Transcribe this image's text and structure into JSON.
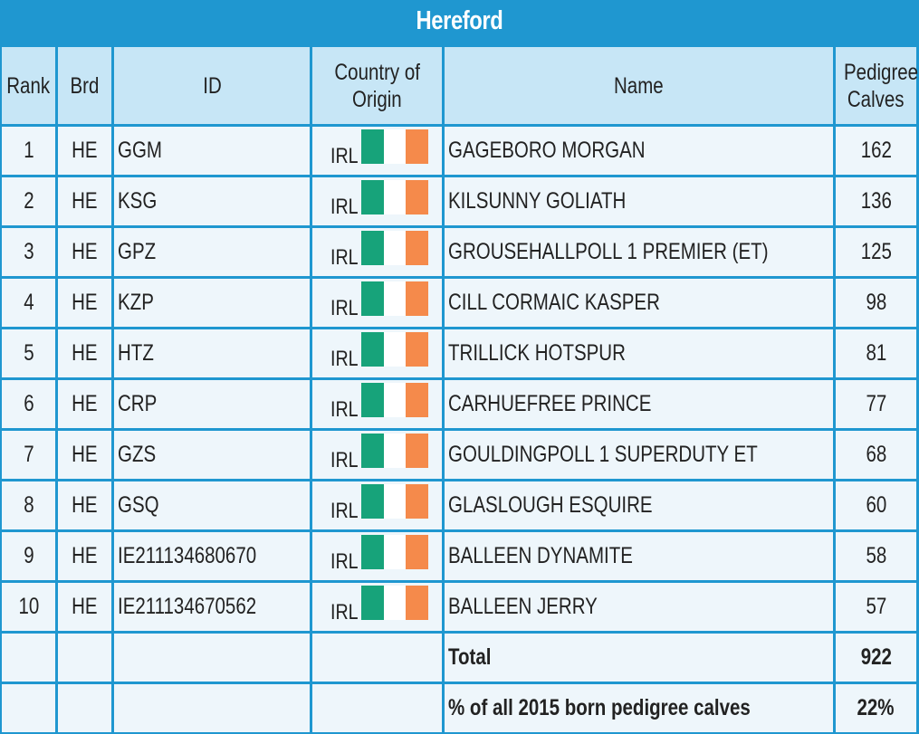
{
  "title": "Hereford",
  "columns": {
    "rank": "Rank",
    "brd": "Brd",
    "id": "ID",
    "origin_line1": "Country of",
    "origin_line2": "Origin",
    "name": "Name",
    "calves_line1": "Pedigree",
    "calves_line2": "Calves"
  },
  "flag_colors": [
    "#17a37a",
    "#ffffff",
    "#f58a4b"
  ],
  "rows": [
    {
      "rank": "1",
      "brd": "HE",
      "id": "GGM",
      "country": "IRL",
      "name": "GAGEBORO MORGAN",
      "calves": "162"
    },
    {
      "rank": "2",
      "brd": "HE",
      "id": "KSG",
      "country": "IRL",
      "name": "KILSUNNY GOLIATH",
      "calves": "136"
    },
    {
      "rank": "3",
      "brd": "HE",
      "id": "GPZ",
      "country": "IRL",
      "name": "GROUSEHALLPOLL 1 PREMIER (ET)",
      "calves": "125"
    },
    {
      "rank": "4",
      "brd": "HE",
      "id": "KZP",
      "country": "IRL",
      "name": "CILL CORMAIC KASPER",
      "calves": "98"
    },
    {
      "rank": "5",
      "brd": "HE",
      "id": "HTZ",
      "country": "IRL",
      "name": "TRILLICK HOTSPUR",
      "calves": "81"
    },
    {
      "rank": "6",
      "brd": "HE",
      "id": "CRP",
      "country": "IRL",
      "name": "CARHUEFREE PRINCE",
      "calves": "77"
    },
    {
      "rank": "7",
      "brd": "HE",
      "id": "GZS",
      "country": "IRL",
      "name": "GOULDINGPOLL 1 SUPERDUTY ET",
      "calves": "68"
    },
    {
      "rank": "8",
      "brd": "HE",
      "id": "GSQ",
      "country": "IRL",
      "name": "GLASLOUGH ESQUIRE",
      "calves": "60"
    },
    {
      "rank": "9",
      "brd": "HE",
      "id": "IE211134680670",
      "country": "IRL",
      "name": "BALLEEN DYNAMITE",
      "calves": "58"
    },
    {
      "rank": "10",
      "brd": "HE",
      "id": "IE211134670562",
      "country": "IRL",
      "name": "BALLEEN JERRY",
      "calves": "57"
    }
  ],
  "total": {
    "label": "Total",
    "value": "922"
  },
  "percent": {
    "label": "% of all 2015 born pedigree calves",
    "value": "22%"
  }
}
